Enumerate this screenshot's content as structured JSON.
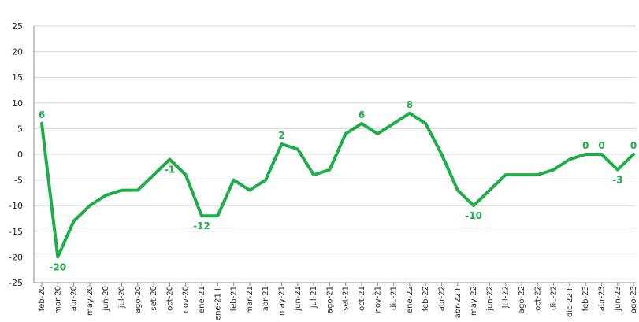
{
  "chart_data": {
    "type": "line",
    "title": "",
    "xlabel": "",
    "ylabel": "",
    "ylim": [
      -25,
      25
    ],
    "yticks": [
      25,
      20,
      15,
      10,
      5,
      0,
      -5,
      -10,
      -15,
      -20,
      -25
    ],
    "grid": true,
    "legend": "none",
    "color": "#1fad4a",
    "categories": [
      "feb-20",
      "mar-20",
      "abr-20",
      "may-20",
      "jun-20",
      "jul-20",
      "ago-20",
      "set-20",
      "oct-20",
      "nov-20",
      "ene-21",
      "ene-21 II",
      "feb-21",
      "mar-21",
      "abr-21",
      "may-21",
      "jun-21",
      "jul-21",
      "ago-21",
      "set-21",
      "oct-21",
      "nov-21",
      "dic-21",
      "ene-22",
      "feb-22",
      "abr-22",
      "abr-22 II",
      "may-22",
      "jun-22",
      "jul-22",
      "ago-22",
      "oct-22",
      "dic-22",
      "dic-22 II",
      "feb-23",
      "abr-23",
      "jun-23",
      "ago-23"
    ],
    "values": [
      6,
      -20,
      -13,
      -10,
      -8,
      -7,
      -7,
      -4,
      -1,
      -4,
      -12,
      -12,
      -5,
      -7,
      -5,
      2,
      1,
      -4,
      -3,
      4,
      6,
      4,
      6,
      8,
      6,
      0,
      -7,
      -10,
      -7,
      -4,
      -4,
      -4,
      -3,
      -1,
      0,
      0,
      -3,
      0
    ],
    "data_labels": [
      {
        "index": 0,
        "text": "6",
        "pos": "above"
      },
      {
        "index": 1,
        "text": "-20",
        "pos": "below"
      },
      {
        "index": 8,
        "text": "-1",
        "pos": "below"
      },
      {
        "index": 10,
        "text": "-12",
        "pos": "below"
      },
      {
        "index": 15,
        "text": "2",
        "pos": "above"
      },
      {
        "index": 20,
        "text": "6",
        "pos": "above"
      },
      {
        "index": 23,
        "text": "8",
        "pos": "above"
      },
      {
        "index": 27,
        "text": "-10",
        "pos": "below"
      },
      {
        "index": 34,
        "text": "0",
        "pos": "above"
      },
      {
        "index": 35,
        "text": "0",
        "pos": "above"
      },
      {
        "index": 36,
        "text": "-3",
        "pos": "below"
      },
      {
        "index": 37,
        "text": "0",
        "pos": "above"
      }
    ]
  }
}
